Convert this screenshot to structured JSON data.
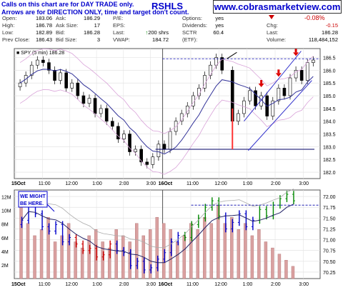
{
  "header": {
    "notice_line1": "Calls on this chart are for DAY TRADE only.",
    "notice_line2": "Arrows are for DIRECTION ONLY, time and target don't count.",
    "ticker": "RSHLS",
    "website": "www.cobrasmarketview.com"
  },
  "quote": {
    "col1": [
      {
        "label": "Open:",
        "value": "183.06"
      },
      {
        "label": "High:",
        "value": "186.78"
      },
      {
        "label": "Low:",
        "value": "182.89"
      },
      {
        "label": "Prev Close:",
        "value": "186.43"
      }
    ],
    "col2": [
      {
        "label": "Ask:",
        "value": "186.29"
      },
      {
        "label": "Ask Size:",
        "value": "17"
      },
      {
        "label": "Bid:",
        "value": "186.28"
      },
      {
        "label": "Bid Size:",
        "value": "3"
      }
    ],
    "col3": [
      {
        "label": "P/E:",
        "value": ""
      },
      {
        "label": "EPS:",
        "value": ""
      },
      {
        "label": "Last:",
        "value": "200 shrs"
      },
      {
        "label": "VWAP:",
        "value": "184.72"
      }
    ],
    "col4": [
      {
        "label": "Options:",
        "value": "yes"
      },
      {
        "label": "Dividends:",
        "value": "yes"
      },
      {
        "label": "SCTR (ETF):",
        "value": "60.4"
      }
    ],
    "col5": [
      {
        "label": "Chg:",
        "value": "-0.15"
      },
      {
        "label": "Last:",
        "value": "186.28"
      },
      {
        "label": "Volume:",
        "value": "118,484,152"
      }
    ],
    "pct_change": "-0.08%",
    "up_arrow_icon": "up-arrow-icon",
    "down_arrow_icon": "down-triangle-icon",
    "colors": {
      "up": "#008800",
      "down": "#cc0000",
      "accent": "#0000cc"
    }
  },
  "chart_data": [
    {
      "type": "candlestick",
      "legend": "SPY (5 min) 186.28",
      "y_ticks": [
        "182.0",
        "182.5",
        "183.0",
        "183.5",
        "184.0",
        "184.5",
        "185.0",
        "185.5",
        "186.0",
        "186.5"
      ],
      "ylim": [
        181.75,
        186.85
      ],
      "x_ticks": [
        "15Oct",
        "11:00",
        "12:00",
        "1:00",
        "2:00",
        "3:00",
        "16Oct",
        "11:00",
        "12:00",
        "1:00",
        "2:00",
        "3:00"
      ],
      "close_path": [
        185.5,
        185.8,
        186.2,
        186.4,
        186.3,
        186.0,
        185.6,
        185.9,
        185.3,
        185.5,
        185.0,
        184.7,
        184.9,
        184.3,
        184.5,
        184.0,
        183.8,
        183.3,
        183.5,
        182.8,
        182.9,
        182.4,
        182.3,
        182.6,
        183.1,
        182.9,
        183.6,
        184.0,
        184.3,
        184.6,
        185.0,
        185.3,
        185.8,
        186.2,
        186.5,
        186.0,
        184.0,
        184.3,
        184.8,
        185.2,
        184.6,
        185.0,
        184.2,
        184.8,
        185.3,
        185.0,
        185.7,
        186.0,
        185.6,
        186.3,
        186.4
      ],
      "resistance_level": 186.45,
      "support_level": 182.9,
      "red_down_arrows": 4
    },
    {
      "type": "candlestick-with-volume",
      "annotation_line1": "WE MIGHT",
      "annotation_line2": "BE HERE.",
      "y_ticks": [
        "70.25",
        "70.50",
        "70.75",
        "71.00",
        "71.25",
        "71.50",
        "71.75",
        "72.00"
      ],
      "ylim": [
        70.1,
        72.15
      ],
      "volume_ticks": [
        "2M",
        "4M",
        "6M",
        "8M",
        "10M",
        "12M"
      ],
      "x_ticks": [
        "15Oct",
        "11:00",
        "12:00",
        "1:00",
        "2:00",
        "3:00",
        "16Oct",
        "11:00",
        "12:00",
        "1:00",
        "2:00",
        "3:00"
      ],
      "close_path": [
        71.45,
        71.85,
        71.6,
        71.3,
        71.2,
        71.35,
        70.95,
        71.05,
        70.9,
        70.75,
        70.8,
        70.6,
        70.65,
        70.9,
        70.75,
        70.7,
        70.4,
        70.5,
        70.3,
        70.35,
        70.55,
        70.7,
        70.95,
        71.1,
        71.05,
        71.35,
        71.5,
        71.75,
        71.9,
        71.55,
        71.25,
        71.4,
        71.6,
        71.3,
        71.45,
        71.7,
        71.55,
        71.8,
        71.95,
        72.05,
        71.9
      ],
      "volume": [
        12,
        9,
        7,
        8,
        10,
        6,
        7,
        9,
        6,
        5,
        7,
        8,
        6,
        5,
        8,
        7,
        6,
        9,
        7,
        8,
        10,
        9,
        8,
        6,
        7,
        9,
        8,
        10,
        9,
        12,
        9,
        10,
        8,
        9,
        7,
        8,
        6,
        5,
        4,
        3,
        2
      ],
      "resistance_level": 71.8
    }
  ]
}
